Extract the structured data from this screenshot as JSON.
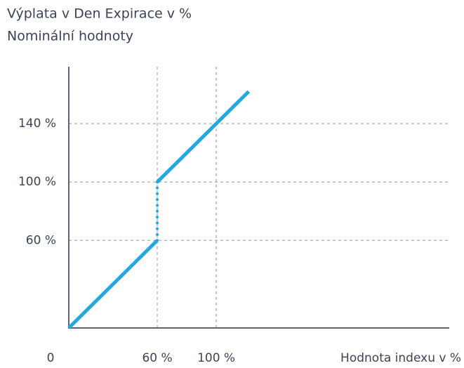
{
  "chart_data": {
    "type": "line",
    "title": "Výplata v Den Expirace v %",
    "subtitle": "Nominální hodnoty",
    "x_label": "Hodnota indexu v %",
    "xlim": [
      0,
      258
    ],
    "ylim": [
      0,
      179
    ],
    "xticks": [
      0,
      {
        "value": 60,
        "label": "60 %"
      },
      {
        "value": 100,
        "label": "100 %"
      }
    ],
    "yticks": [
      {
        "value": 60,
        "label": "60 %"
      },
      {
        "value": 100,
        "label": "100 %"
      },
      {
        "value": 140,
        "label": "140 %"
      }
    ],
    "grid": true,
    "series": [
      {
        "color": "#22a9e1",
        "style": "solid",
        "x": [
          0,
          60
        ],
        "values": [
          0,
          60
        ]
      },
      {
        "color": "#22a9e1",
        "style": "dotted",
        "x": [
          60,
          60
        ],
        "values": [
          60,
          100
        ]
      },
      {
        "color": "#22a9e1",
        "style": "solid",
        "x": [
          60,
          122
        ],
        "values": [
          100,
          162
        ]
      }
    ]
  }
}
